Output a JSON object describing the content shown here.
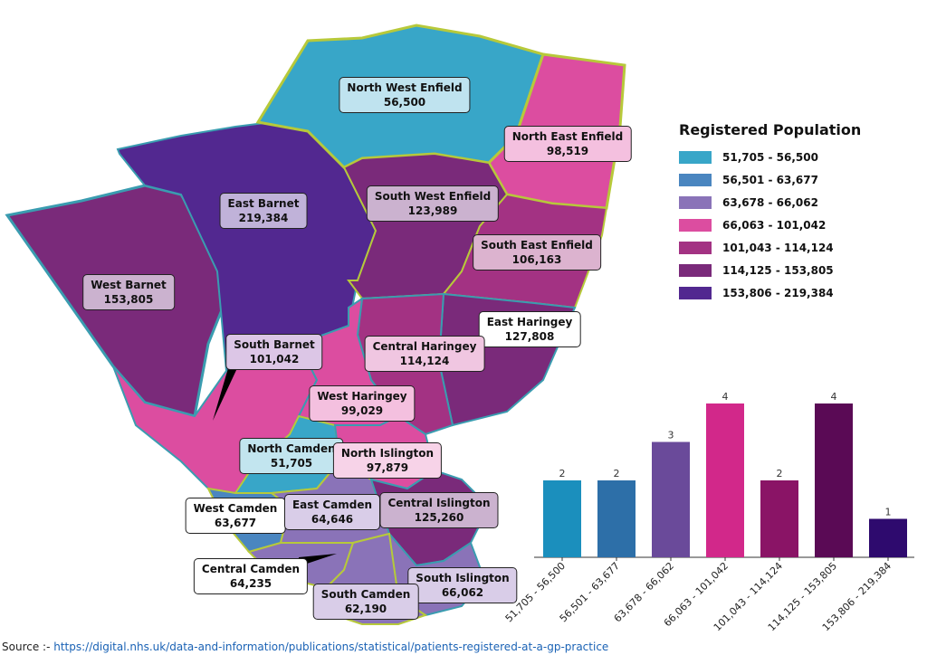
{
  "legend": {
    "title": "Registered Population",
    "items": [
      {
        "label": "51,705 - 56,500",
        "color": "#38a6c8"
      },
      {
        "label": "56,501 - 63,677",
        "color": "#4a86c0"
      },
      {
        "label": "63,678 - 66,062",
        "color": "#8a73b8"
      },
      {
        "label": "66,063 - 101,042",
        "color": "#dc4da0"
      },
      {
        "label": "101,043 - 114,124",
        "color": "#a33283"
      },
      {
        "label": "114,125 - 153,805",
        "color": "#7a2a7a"
      },
      {
        "label": "153,806 - 219,384",
        "color": "#522890"
      }
    ]
  },
  "regions": [
    {
      "name": "North West Enfield",
      "value": "56,500",
      "bg": "#bfe3ef"
    },
    {
      "name": "North East Enfield",
      "value": "98,519",
      "bg": "#f4c0df"
    },
    {
      "name": "South West Enfield",
      "value": "123,989",
      "bg": "#cbb2cf"
    },
    {
      "name": "South East Enfield",
      "value": "106,163",
      "bg": "#dcb3cf"
    },
    {
      "name": "East Barnet",
      "value": "219,384",
      "bg": "#c0b2d9"
    },
    {
      "name": "West Barnet",
      "value": "153,805",
      "bg": "#cbb2cf"
    },
    {
      "name": "South Barnet",
      "value": "101,042",
      "bg": "#dcc6e6"
    },
    {
      "name": "East Haringey",
      "value": "127,808",
      "bg": "#ffffff"
    },
    {
      "name": "Central Haringey",
      "value": "114,124",
      "bg": "#f0c6e1"
    },
    {
      "name": "West Haringey",
      "value": "99,029",
      "bg": "#f4c0df"
    },
    {
      "name": "North Camden",
      "value": "51,705",
      "bg": "#c2e5ef"
    },
    {
      "name": "North Islington",
      "value": "97,879",
      "bg": "#f7d3e8"
    },
    {
      "name": "West Camden",
      "value": "63,677",
      "bg": "#ffffff"
    },
    {
      "name": "East Camden",
      "value": "64,646",
      "bg": "#d9cde8"
    },
    {
      "name": "Central Islington",
      "value": "125,260",
      "bg": "#cbb2cf"
    },
    {
      "name": "Central Camden",
      "value": "64,235",
      "bg": "#ffffff"
    },
    {
      "name": "South Islington",
      "value": "66,062",
      "bg": "#d9cde8"
    },
    {
      "name": "South Camden",
      "value": "62,190",
      "bg": "#d9cde8"
    }
  ],
  "chart_data": {
    "type": "bar",
    "title": "",
    "categories": [
      "51,705 - 56,500",
      "56,501 - 63,677",
      "63,678 - 66,062",
      "66,063 - 101,042",
      "101,043 - 114,124",
      "114,125 - 153,805",
      "153,806 - 219,384"
    ],
    "values": [
      2,
      2,
      3,
      4,
      2,
      4,
      1
    ],
    "colors": [
      "#1b8fbd",
      "#2d6fa8",
      "#6a4a9a",
      "#d2288a",
      "#8a1466",
      "#5a0a55",
      "#2e0a6e"
    ],
    "ylim": [
      0,
      4
    ],
    "xlabel": "",
    "ylabel": ""
  },
  "source": {
    "prefix": "Source :-",
    "url": "https://digital.nhs.uk/data-and-information/publications/statistical/patients-registered-at-a-gp-practice"
  }
}
